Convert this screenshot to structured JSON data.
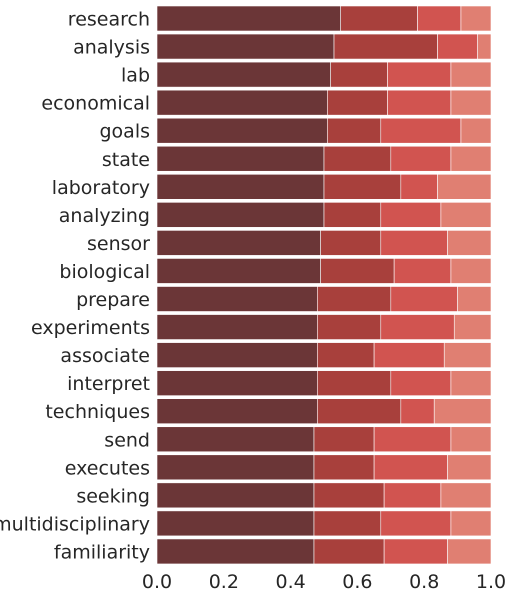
{
  "chart_data": {
    "type": "bar",
    "orientation": "horizontal",
    "stacked": true,
    "categories": [
      "research",
      "analysis",
      "lab",
      "economical",
      "goals",
      "state",
      "laboratory",
      "analyzing",
      "sensor",
      "biological",
      "prepare",
      "experiments",
      "associate",
      "interpret",
      "techniques",
      "send",
      "executes",
      "seeking",
      "multidisciplinary",
      "familiarity"
    ],
    "series": [
      {
        "color": "#6b3637",
        "values": [
          0.55,
          0.53,
          0.52,
          0.51,
          0.51,
          0.5,
          0.5,
          0.5,
          0.49,
          0.49,
          0.48,
          0.48,
          0.48,
          0.48,
          0.48,
          0.47,
          0.47,
          0.47,
          0.47,
          0.47
        ]
      },
      {
        "color": "#a8403c",
        "values": [
          0.23,
          0.31,
          0.17,
          0.18,
          0.16,
          0.2,
          0.23,
          0.17,
          0.18,
          0.22,
          0.22,
          0.19,
          0.17,
          0.22,
          0.25,
          0.18,
          0.18,
          0.21,
          0.2,
          0.21
        ]
      },
      {
        "color": "#d15450",
        "values": [
          0.13,
          0.12,
          0.19,
          0.19,
          0.24,
          0.18,
          0.11,
          0.18,
          0.2,
          0.17,
          0.2,
          0.22,
          0.21,
          0.18,
          0.1,
          0.23,
          0.22,
          0.17,
          0.21,
          0.19
        ]
      },
      {
        "color": "#e07f72",
        "values": [
          0.09,
          0.04,
          0.12,
          0.12,
          0.09,
          0.12,
          0.16,
          0.15,
          0.13,
          0.12,
          0.1,
          0.11,
          0.14,
          0.12,
          0.17,
          0.12,
          0.13,
          0.15,
          0.12,
          0.13
        ]
      }
    ],
    "xticks": [
      "0.0",
      "0.2",
      "0.4",
      "0.6",
      "0.8",
      "1.0"
    ],
    "xlim": [
      0,
      1.0
    ],
    "grid": false,
    "legend": "none"
  }
}
